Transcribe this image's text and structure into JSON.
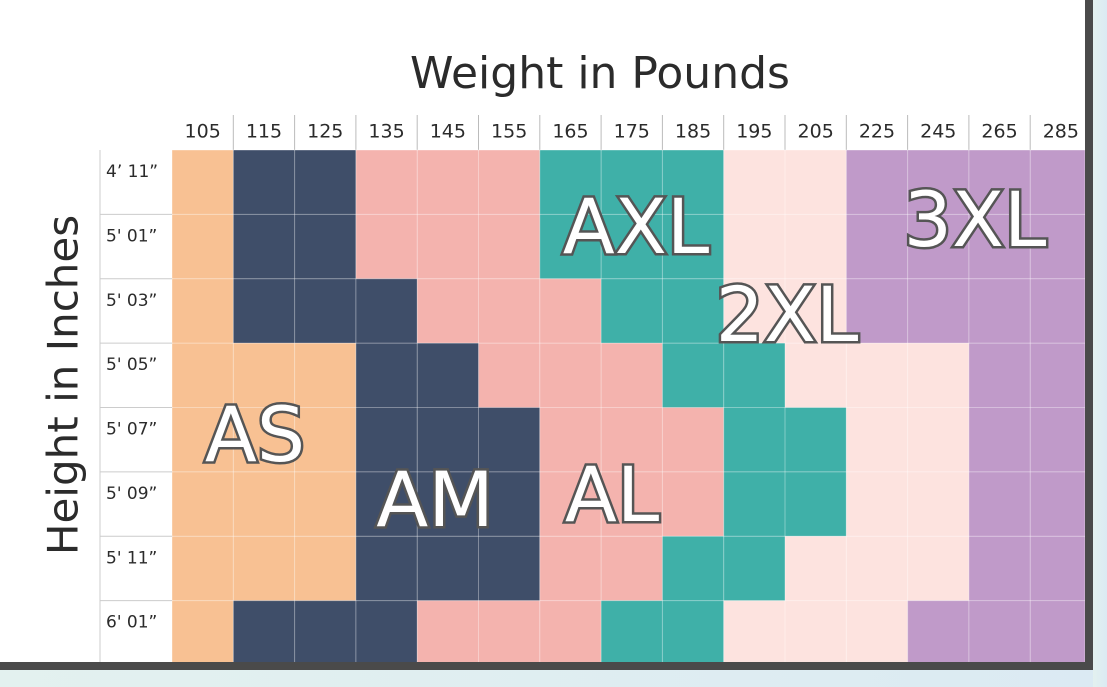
{
  "title": "Weight in Pounds",
  "y_label": "Height in Inches",
  "columns": [
    "105",
    "115",
    "125",
    "135",
    "145",
    "155",
    "165",
    "175",
    "185",
    "195",
    "205",
    "225",
    "245",
    "265",
    "285"
  ],
  "sizes": [
    {
      "label": "AS",
      "color": "#f8c193"
    },
    {
      "label": "AM",
      "color": "#3f4e69"
    },
    {
      "label": "AL",
      "color": "#f4b3ae"
    },
    {
      "label": "AXL",
      "color": "#3fb0a8"
    },
    {
      "label": "2XL",
      "color": "#fde3df"
    },
    {
      "label": "3XL",
      "color": "#c09ac9"
    }
  ],
  "rows": [
    {
      "label": "4’ 11”",
      "cells": [
        "#f8c193",
        "#3f4e69",
        "#3f4e69",
        "#f4b3ae",
        "#f4b3ae",
        "#f4b3ae",
        "#3fb0a8",
        "#3fb0a8",
        "#3fb0a8",
        "#fde3df",
        "#fde3df",
        "#c09ac9",
        "#c09ac9",
        "#c09ac9",
        "#c09ac9"
      ]
    },
    {
      "label": "5' 01”",
      "cells": [
        "#f8c193",
        "#3f4e69",
        "#3f4e69",
        "#f4b3ae",
        "#f4b3ae",
        "#f4b3ae",
        "#3fb0a8",
        "#3fb0a8",
        "#3fb0a8",
        "#fde3df",
        "#fde3df",
        "#c09ac9",
        "#c09ac9",
        "#c09ac9",
        "#c09ac9"
      ]
    },
    {
      "label": "5' 03”",
      "cells": [
        "#f8c193",
        "#3f4e69",
        "#3f4e69",
        "#3f4e69",
        "#f4b3ae",
        "#f4b3ae",
        "#f4b3ae",
        "#3fb0a8",
        "#3fb0a8",
        "#fde3df",
        "#fde3df",
        "#c09ac9",
        "#c09ac9",
        "#c09ac9",
        "#c09ac9"
      ]
    },
    {
      "label": "5' 05”",
      "cells": [
        "#f8c193",
        "#f8c193",
        "#f8c193",
        "#3f4e69",
        "#3f4e69",
        "#f4b3ae",
        "#f4b3ae",
        "#f4b3ae",
        "#3fb0a8",
        "#3fb0a8",
        "#fde3df",
        "#fde3df",
        "#fde3df",
        "#c09ac9",
        "#c09ac9"
      ]
    },
    {
      "label": "5' 07”",
      "cells": [
        "#f8c193",
        "#f8c193",
        "#f8c193",
        "#3f4e69",
        "#3f4e69",
        "#3f4e69",
        "#f4b3ae",
        "#f4b3ae",
        "#f4b3ae",
        "#3fb0a8",
        "#3fb0a8",
        "#fde3df",
        "#fde3df",
        "#c09ac9",
        "#c09ac9"
      ]
    },
    {
      "label": "5' 09”",
      "cells": [
        "#f8c193",
        "#f8c193",
        "#f8c193",
        "#3f4e69",
        "#3f4e69",
        "#3f4e69",
        "#f4b3ae",
        "#f4b3ae",
        "#f4b3ae",
        "#3fb0a8",
        "#3fb0a8",
        "#fde3df",
        "#fde3df",
        "#c09ac9",
        "#c09ac9"
      ]
    },
    {
      "label": "5' 11”",
      "cells": [
        "#f8c193",
        "#f8c193",
        "#f8c193",
        "#3f4e69",
        "#3f4e69",
        "#3f4e69",
        "#f4b3ae",
        "#f4b3ae",
        "#3fb0a8",
        "#3fb0a8",
        "#fde3df",
        "#fde3df",
        "#fde3df",
        "#c09ac9",
        "#c09ac9"
      ]
    },
    {
      "label": "6' 01”",
      "cells": [
        "#f8c193",
        "#3f4e69",
        "#3f4e69",
        "#3f4e69",
        "#f4b3ae",
        "#f4b3ae",
        "#f4b3ae",
        "#3fb0a8",
        "#3fb0a8",
        "#fde3df",
        "#fde3df",
        "#fde3df",
        "#c09ac9",
        "#c09ac9",
        "#c09ac9"
      ]
    }
  ]
}
